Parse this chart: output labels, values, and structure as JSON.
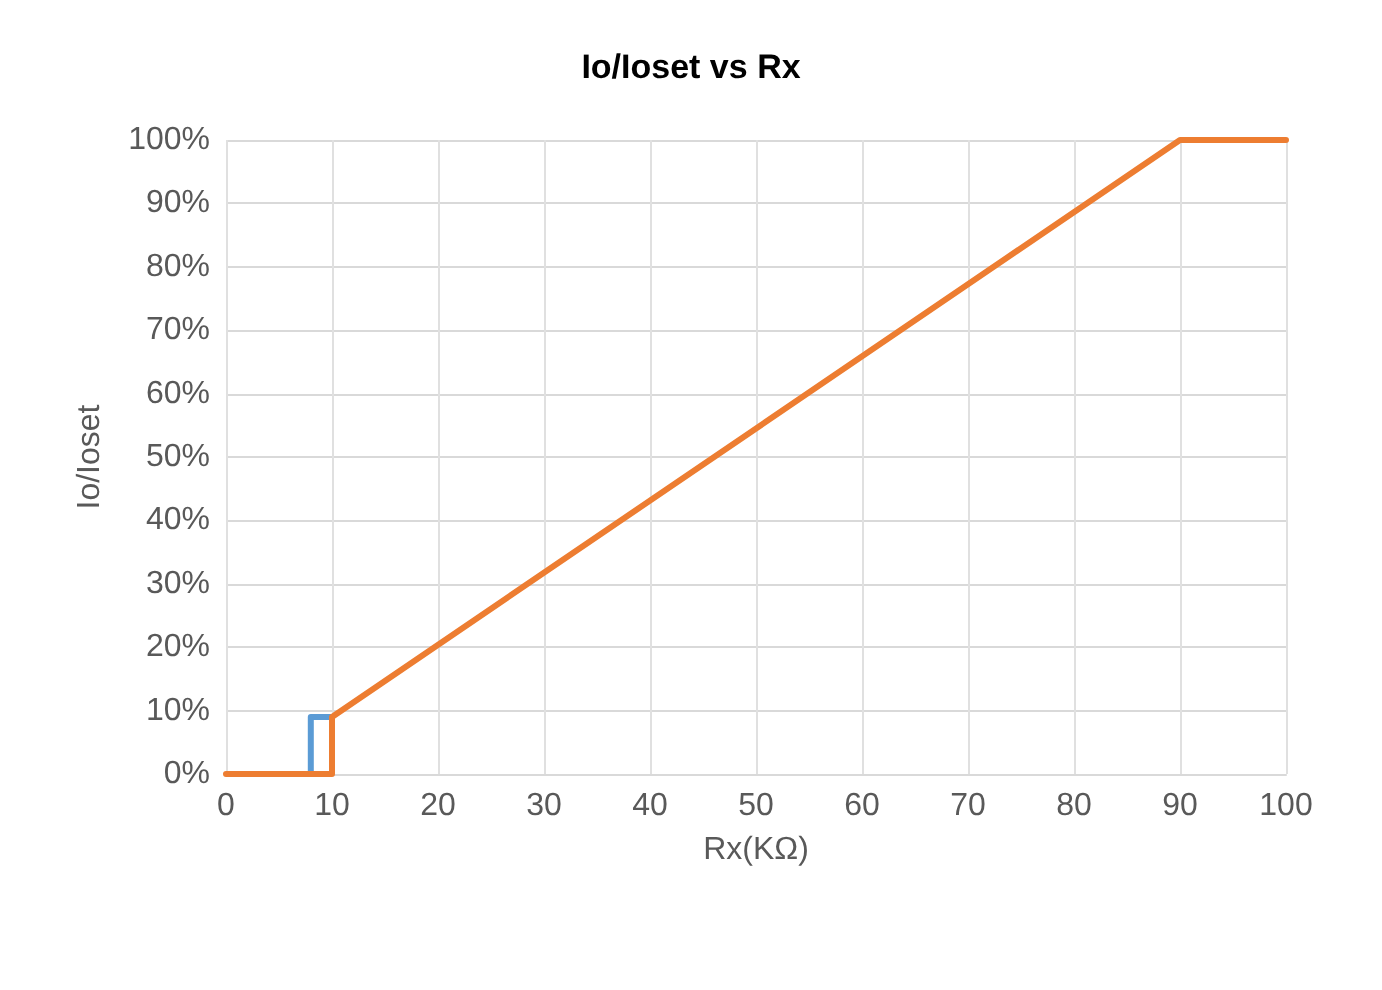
{
  "chart_data": {
    "type": "line",
    "title": "Io/Ioset vs Rx",
    "xlabel": "Rx(KΩ)",
    "ylabel": "Io/Ioset",
    "series": [
      {
        "color": "#5b9bd5",
        "x": [
          8,
          8,
          10
        ],
        "values": [
          0,
          9,
          9
        ]
      },
      {
        "color": "#ed7d31",
        "x": [
          0,
          10,
          10,
          90,
          100
        ],
        "values": [
          0,
          0,
          9,
          100,
          100
        ]
      }
    ],
    "xlim": [
      0,
      100
    ],
    "xticks": [
      0,
      10,
      20,
      30,
      40,
      50,
      60,
      70,
      80,
      90,
      100
    ],
    "ylim": [
      0,
      100
    ],
    "yticks": [
      {
        "value": 0,
        "label": "0%"
      },
      {
        "value": 10,
        "label": "10%"
      },
      {
        "value": 20,
        "label": "20%"
      },
      {
        "value": 30,
        "label": "30%"
      },
      {
        "value": 40,
        "label": "40%"
      },
      {
        "value": 50,
        "label": "50%"
      },
      {
        "value": 60,
        "label": "60%"
      },
      {
        "value": 70,
        "label": "70%"
      },
      {
        "value": 80,
        "label": "80%"
      },
      {
        "value": 90,
        "label": "90%"
      },
      {
        "value": 100,
        "label": "100%"
      }
    ],
    "grid": true,
    "marker": "none",
    "line_style": "solid"
  }
}
